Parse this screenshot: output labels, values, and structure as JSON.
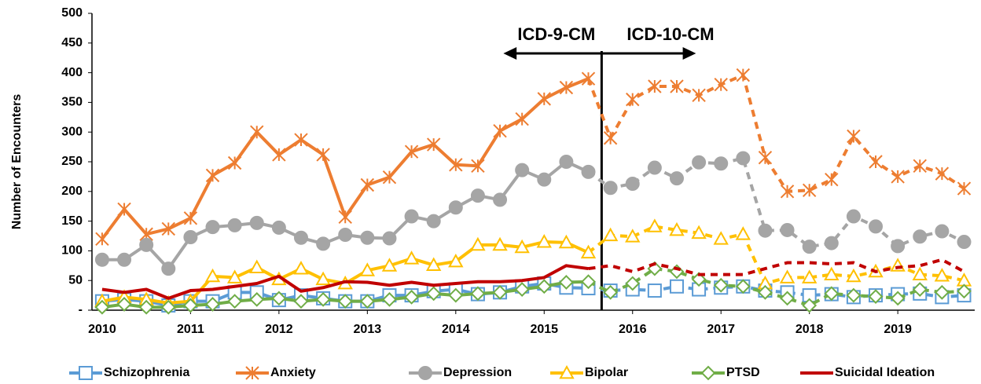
{
  "chart_data": {
    "type": "line",
    "y_label": "Number of Encounters",
    "annotations": [
      {
        "text": "ICD-9-CM",
        "side": "left"
      },
      {
        "text": "ICD-10-CM",
        "side": "right"
      }
    ],
    "divider_x": 2015.65,
    "x": [
      2010,
      2010.25,
      2010.5,
      2010.75,
      2011,
      2011.25,
      2011.5,
      2011.75,
      2012,
      2012.25,
      2012.5,
      2012.75,
      2013,
      2013.25,
      2013.5,
      2013.75,
      2014,
      2014.25,
      2014.5,
      2014.75,
      2015,
      2015.25,
      2015.5,
      2015.75,
      2016,
      2016.25,
      2016.5,
      2016.75,
      2017,
      2017.25,
      2017.5,
      2017.75,
      2018,
      2018.25,
      2018.5,
      2018.75,
      2019,
      2019.25,
      2019.5,
      2019.75
    ],
    "xlim": [
      2009.885,
      2019.87
    ],
    "xticks": [
      2010,
      2011,
      2012,
      2013,
      2014,
      2015,
      2016,
      2017,
      2018,
      2019
    ],
    "ylim": [
      0,
      500
    ],
    "yticks": [
      {
        "value": 0,
        "label": "-"
      },
      50,
      100,
      150,
      200,
      250,
      300,
      350,
      400,
      450,
      500
    ],
    "legend": "bottom",
    "series": [
      {
        "name": "Schizophrenia",
        "color": "#5b9bd5",
        "marker": "square",
        "values": [
          15,
          18,
          15,
          8,
          15,
          15,
          30,
          30,
          17,
          25,
          20,
          15,
          15,
          25,
          25,
          32,
          35,
          27,
          30,
          40,
          45,
          38,
          37,
          33,
          35,
          33,
          40,
          35,
          38,
          40,
          33,
          30,
          25,
          27,
          22,
          25,
          27,
          28,
          22,
          25
        ]
      },
      {
        "name": "Anxiety",
        "color": "#ed7d31",
        "marker": "asterisk",
        "values": [
          120,
          170,
          128,
          137,
          155,
          227,
          248,
          300,
          262,
          287,
          262,
          157,
          211,
          224,
          267,
          279,
          245,
          243,
          302,
          322,
          356,
          375,
          390,
          290,
          355,
          377,
          377,
          362,
          380,
          396,
          257,
          200,
          202,
          220,
          293,
          250,
          225,
          243,
          230,
          205
        ]
      },
      {
        "name": "Depression",
        "color": "#a5a5a5",
        "marker": "circle",
        "values": [
          85,
          85,
          110,
          70,
          123,
          140,
          143,
          147,
          139,
          122,
          112,
          127,
          122,
          121,
          158,
          150,
          173,
          193,
          186,
          236,
          220,
          250,
          233,
          206,
          213,
          240,
          222,
          249,
          247,
          256,
          134,
          135,
          107,
          113,
          158,
          141,
          108,
          124,
          133,
          115
        ]
      },
      {
        "name": "Bipolar",
        "color": "#ffc000",
        "marker": "triangle",
        "values": [
          15,
          22,
          18,
          12,
          15,
          57,
          55,
          72,
          52,
          70,
          52,
          45,
          67,
          75,
          87,
          76,
          82,
          110,
          110,
          106,
          115,
          114,
          97,
          126,
          124,
          141,
          135,
          130,
          120,
          128,
          45,
          55,
          55,
          60,
          57,
          65,
          75,
          60,
          58,
          50
        ]
      },
      {
        "name": "PTSD",
        "color": "#70ad47",
        "marker": "diamond",
        "values": [
          5,
          10,
          5,
          5,
          8,
          10,
          15,
          18,
          20,
          15,
          18,
          15,
          15,
          18,
          22,
          28,
          25,
          28,
          30,
          35,
          40,
          47,
          48,
          30,
          45,
          70,
          65,
          52,
          42,
          40,
          30,
          20,
          8,
          28,
          25,
          23,
          20,
          35,
          30,
          32
        ]
      },
      {
        "name": "Suicidal Ideation",
        "color": "#c00000",
        "marker": "none",
        "values": [
          35,
          30,
          35,
          20,
          33,
          35,
          40,
          45,
          57,
          32,
          38,
          48,
          47,
          42,
          47,
          42,
          45,
          48,
          48,
          50,
          55,
          75,
          70,
          75,
          65,
          78,
          70,
          60,
          60,
          60,
          70,
          80,
          80,
          78,
          80,
          65,
          72,
          75,
          85,
          65
        ]
      }
    ]
  }
}
